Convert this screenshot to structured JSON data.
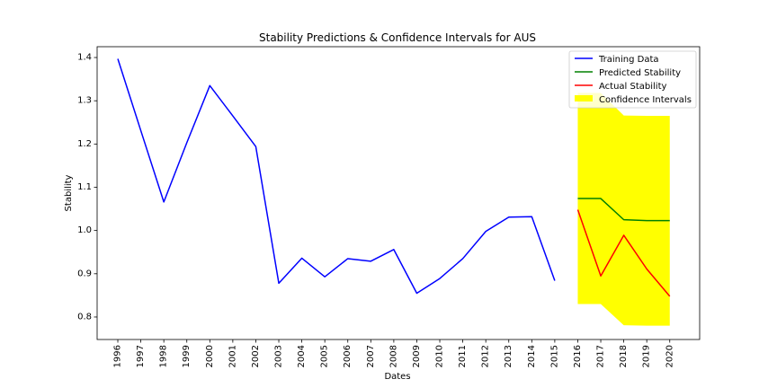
{
  "chart_data": {
    "type": "line",
    "title": "Stability Predictions & Confidence Intervals for AUS",
    "xlabel": "Dates",
    "ylabel": "Stability",
    "x_ticks": [
      "1996",
      "1997",
      "1998",
      "1999",
      "2000",
      "2001",
      "2002",
      "2003",
      "2004",
      "2005",
      "2006",
      "2007",
      "2008",
      "2009",
      "2010",
      "2011",
      "2012",
      "2013",
      "2014",
      "2015",
      "2016",
      "2017",
      "2018",
      "2019",
      "2020"
    ],
    "y_ticks": [
      "0.8",
      "0.9",
      "1.0",
      "1.1",
      "1.2",
      "1.3",
      "1.4"
    ],
    "xlim": [
      1995.1,
      2021.3
    ],
    "ylim": [
      0.748,
      1.425
    ],
    "grid": false,
    "legend_position": "top-right",
    "series": [
      {
        "name": "Training Data",
        "color": "#0000ff",
        "x": [
          1996,
          1997,
          1998,
          1999,
          2000,
          2001,
          2002,
          2003,
          2004,
          2005,
          2006,
          2007,
          2008,
          2009,
          2010,
          2011,
          2012,
          2013,
          2014,
          2015
        ],
        "values": [
          1.397,
          1.231,
          1.066,
          1.203,
          1.335,
          1.265,
          1.194,
          0.878,
          0.936,
          0.893,
          0.935,
          0.929,
          0.956,
          0.855,
          0.889,
          0.935,
          0.998,
          1.031,
          1.032,
          0.884
        ]
      },
      {
        "name": "Predicted Stability",
        "color": "#008000",
        "x": [
          2016,
          2017,
          2018,
          2019,
          2020
        ],
        "values": [
          1.074,
          1.074,
          1.025,
          1.023,
          1.023
        ]
      },
      {
        "name": "Actual Stability",
        "color": "#ff0000",
        "x": [
          2016,
          2017,
          2018,
          2019,
          2020
        ],
        "values": [
          1.048,
          0.895,
          0.989,
          0.911,
          0.848
        ]
      }
    ],
    "confidence_interval": {
      "name": "Confidence Intervals",
      "color": "#ffff00",
      "x": [
        2016,
        2017,
        2018,
        2019,
        2020
      ],
      "lower": [
        0.83,
        0.83,
        0.781,
        0.78,
        0.78
      ],
      "upper": [
        1.318,
        1.318,
        1.266,
        1.265,
        1.265
      ]
    }
  }
}
